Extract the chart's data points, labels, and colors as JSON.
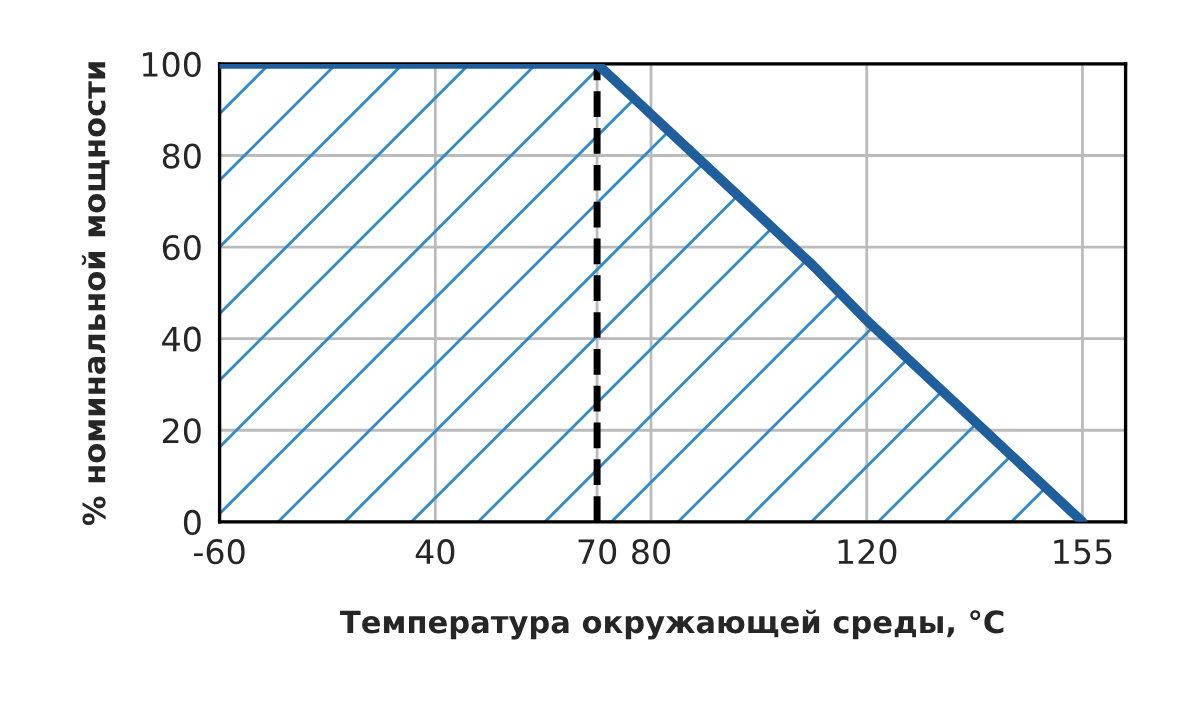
{
  "chart_data": {
    "type": "area",
    "xlabel": "Температура окружающей среды, °C",
    "ylabel": "% номинальной мощности",
    "categories": [
      "-60",
      null,
      null,
      null,
      "40",
      null,
      null,
      "70",
      "80",
      null,
      null,
      null,
      "120",
      null,
      null,
      null,
      "155"
    ],
    "series": [
      {
        "color": "#1f5f9e",
        "values": [
          100,
          100,
          100,
          100,
          100,
          100,
          100,
          100,
          89,
          78,
          67,
          56,
          44,
          33,
          22,
          11,
          0
        ]
      }
    ],
    "ylim": [
      0,
      100
    ],
    "yticks": [
      0,
      20,
      40,
      60,
      80,
      100
    ],
    "ref_lines": [
      {
        "axis": "x",
        "value": "70",
        "color": "#000000",
        "line_style": "dashed"
      }
    ],
    "grid": true,
    "marker": "none",
    "line_style": "solid"
  }
}
